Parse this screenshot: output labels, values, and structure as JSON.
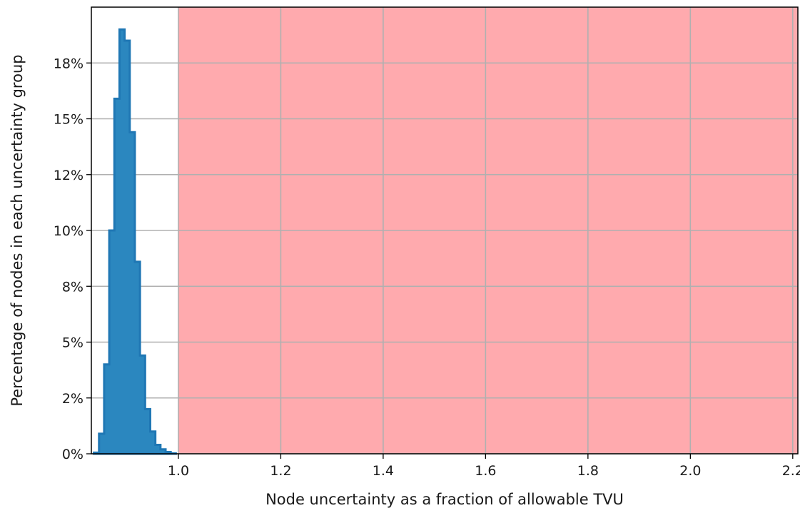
{
  "chart_data": {
    "type": "histogram",
    "title": "",
    "xlabel": "Node uncertainty as a fraction of allowable TVU",
    "ylabel": "Percentage of nodes in each uncertainty group",
    "xlim": [
      0.83,
      2.21
    ],
    "ylim": [
      0,
      20
    ],
    "x_ticks": [
      1.0,
      1.2,
      1.4,
      1.6,
      1.8,
      2.0,
      2.2
    ],
    "x_tick_labels": [
      "1.0",
      "1.2",
      "1.4",
      "1.6",
      "1.8",
      "2.0",
      "2.2"
    ],
    "y_ticks": [
      0,
      2.5,
      5,
      7.5,
      10,
      12.5,
      15,
      17.5
    ],
    "y_tick_labels": [
      "0%",
      "2%",
      "5%",
      "8%",
      "10%",
      "12%",
      "15%",
      "18%"
    ],
    "grid": true,
    "shaded_region": {
      "x_from": 1.0,
      "x_to": 2.21,
      "color": "#ffaaae"
    },
    "bar_color": "#2b87bf",
    "edge_color": "#1f77b4",
    "bin_width": 0.01,
    "bins": [
      {
        "x0": 0.835,
        "value": 0.05
      },
      {
        "x0": 0.845,
        "value": 0.9
      },
      {
        "x0": 0.855,
        "value": 4.0
      },
      {
        "x0": 0.865,
        "value": 10.0
      },
      {
        "x0": 0.875,
        "value": 15.9
      },
      {
        "x0": 0.885,
        "value": 19.0
      },
      {
        "x0": 0.895,
        "value": 18.5
      },
      {
        "x0": 0.905,
        "value": 14.4
      },
      {
        "x0": 0.915,
        "value": 8.6
      },
      {
        "x0": 0.925,
        "value": 4.4
      },
      {
        "x0": 0.935,
        "value": 2.0
      },
      {
        "x0": 0.945,
        "value": 1.0
      },
      {
        "x0": 0.955,
        "value": 0.4
      },
      {
        "x0": 0.965,
        "value": 0.2
      },
      {
        "x0": 0.975,
        "value": 0.08
      },
      {
        "x0": 0.985,
        "value": 0.02
      }
    ]
  }
}
